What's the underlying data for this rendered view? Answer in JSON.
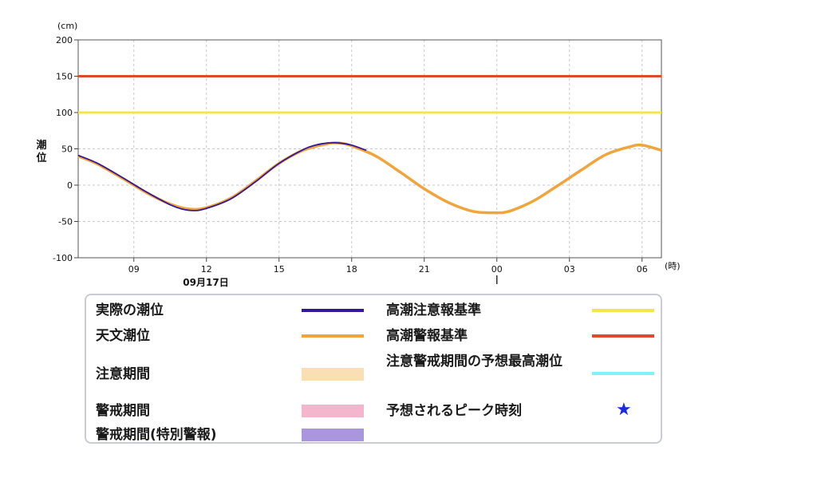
{
  "chart_data": {
    "type": "line",
    "y_unit": "(cm)",
    "x_unit": "(時)",
    "ylabel": "潮位",
    "ylim": [
      -100,
      200
    ],
    "y_ticks": [
      200,
      150,
      100,
      50,
      0,
      -50,
      -100
    ],
    "x_range_hours": [
      6.7,
      30.8
    ],
    "x_ticks": [
      {
        "hour": 9,
        "label": "09"
      },
      {
        "hour": 12,
        "label": "12"
      },
      {
        "hour": 15,
        "label": "15"
      },
      {
        "hour": 18,
        "label": "18"
      },
      {
        "hour": 21,
        "label": "21"
      },
      {
        "hour": 24,
        "label": "00"
      },
      {
        "hour": 27,
        "label": "03"
      },
      {
        "hour": 30,
        "label": "06"
      }
    ],
    "date_label": "09月17日",
    "date_marker_hour": 24,
    "grid": true,
    "reference_lines": [
      {
        "name": "高潮警報基準",
        "value": 150,
        "color": "#e04a2a"
      },
      {
        "name": "高潮注意報基準",
        "value": 100,
        "color": "#f2e64a"
      }
    ],
    "series": [
      {
        "name": "天文潮位",
        "color": "#f0a43c",
        "x": [
          6.7,
          7.5,
          8.5,
          9.5,
          10.5,
          11.3,
          12.0,
          13.0,
          14.0,
          15.0,
          16.0,
          17.0,
          17.5,
          18.0,
          19.0,
          20.0,
          21.0,
          22.0,
          23.0,
          23.9,
          24.5,
          25.5,
          26.5,
          27.5,
          28.5,
          29.5,
          30.0,
          30.8
        ],
        "y": [
          40,
          29,
          10,
          -10,
          -26,
          -33,
          -31,
          -18,
          5,
          30,
          48,
          57,
          58,
          54,
          40,
          18,
          -5,
          -24,
          -36,
          -38,
          -36,
          -22,
          -1,
          21,
          42,
          53,
          55,
          48
        ]
      },
      {
        "name": "実際の潮位",
        "color": "#35189a",
        "x": [
          6.7,
          7.5,
          8.5,
          9.5,
          10.5,
          11.0,
          11.5,
          12.0,
          13.0,
          14.0,
          15.0,
          16.0,
          16.5,
          17.0,
          17.5,
          18.0,
          18.6
        ],
        "y": [
          41,
          30,
          11,
          -9,
          -27,
          -33,
          -35,
          -32,
          -19,
          4,
          30,
          49,
          55,
          58,
          58,
          55,
          48
        ]
      }
    ],
    "legend": {
      "left": [
        {
          "label": "実際の潮位",
          "symbol": "line",
          "color": "#35189a"
        },
        {
          "label": "天文潮位",
          "symbol": "line",
          "color": "#f0a43c"
        },
        {
          "label": "注意期間",
          "symbol": "band",
          "color": "#f9dfb3"
        },
        {
          "label": "警戒期間",
          "symbol": "band",
          "color": "#f4b6cc"
        },
        {
          "label": "警戒期間(特別警報)",
          "symbol": "band",
          "color": "#a996dc"
        }
      ],
      "right": [
        {
          "label": "高潮注意報基準",
          "symbol": "line",
          "color": "#f2e64a"
        },
        {
          "label": "高潮警報基準",
          "symbol": "line",
          "color": "#e04a2a"
        },
        {
          "label": "注意警戒期間の予想最高潮位",
          "symbol": "line",
          "color": "#7ff3f6"
        },
        {
          "label": "予想されるピーク時刻",
          "symbol": "star",
          "color": "#1a2be0"
        }
      ]
    }
  }
}
